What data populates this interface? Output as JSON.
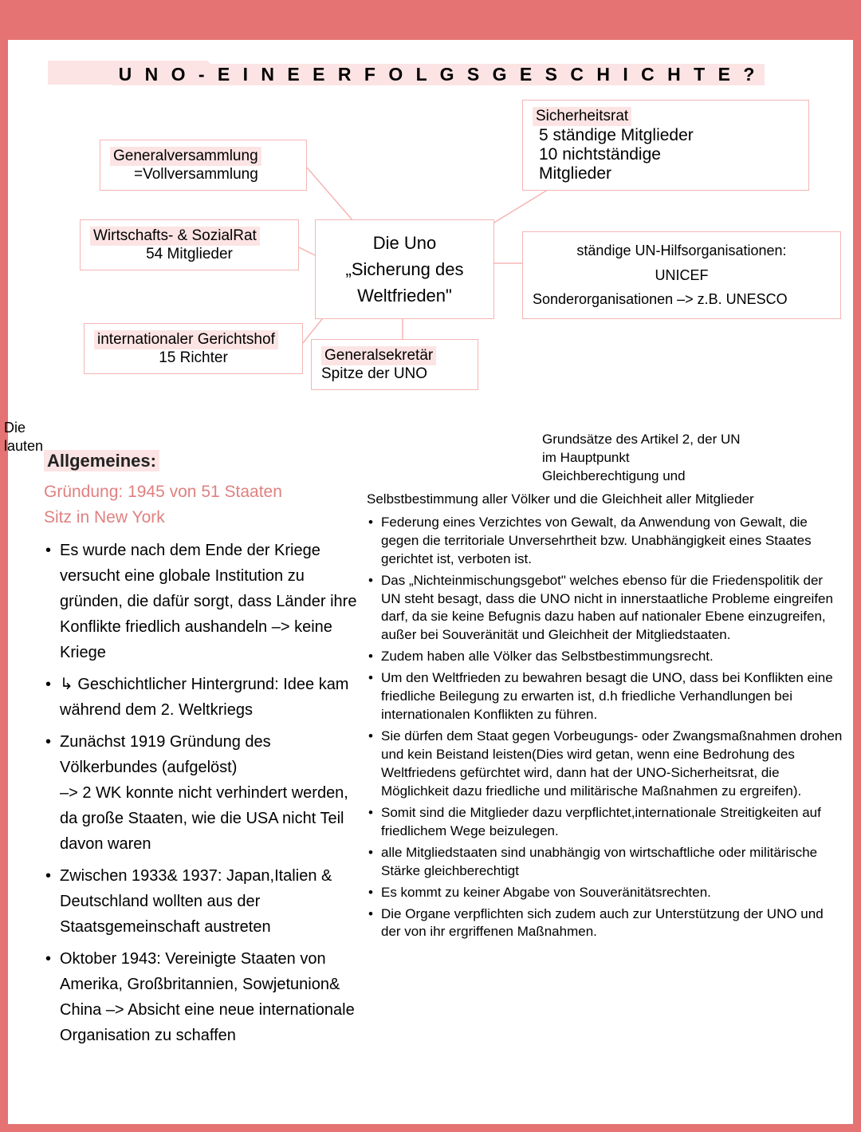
{
  "title": "U N O - E I N E  E R F O L G S  G E S C H I C H T E ?",
  "colors": {
    "frame": "#e57373",
    "box_border": "#f5b5b5",
    "highlight_bg": "#fce4e4",
    "accent_text": "#e08080",
    "connector": "#f5b5b5"
  },
  "diagram": {
    "center": {
      "line1": "Die Uno",
      "line2": "„Sicherung des",
      "line3": "Weltfrieden\""
    },
    "box1": {
      "label": "Generalversammlung",
      "sub": "=Vollversammlung"
    },
    "box2": {
      "label": "Wirtschafts- & SozialRat",
      "sub": "54 Mitglieder"
    },
    "box3": {
      "label": "internationaler Gerichtshof",
      "sub": "15 Richter"
    },
    "box4": {
      "label": "Generalsekretär",
      "sub": "Spitze der UNO"
    },
    "box5": {
      "label": "Sicherheitsrat",
      "row1": "5 ständige Mitglieder",
      "row2": "10 nichtständige",
      "row3": "Mitglieder"
    },
    "box6": {
      "row1": "ständige UN-Hilfsorganisationen:",
      "row2": "UNICEF",
      "row3": "Sonderorganisationen –> z.B. UNESCO"
    }
  },
  "side_label": {
    "line1": "Die",
    "line2": "lauten"
  },
  "allgemeines": {
    "heading": "Allgemeines:",
    "sub1": "Gründung: 1945 von 51 Staaten",
    "sub2": "Sitz in New York",
    "items": [
      "Es wurde nach dem Ende der Kriege versucht eine globale Institution zu gründen, die dafür sorgt, dass Länder ihre Konflikte friedlich aushandeln –> keine Kriege",
      "↳ Geschichtlicher Hintergrund: Idee kam während dem 2. Weltkriegs",
      "Zunächst 1919 Gründung des Völkerbundes  (aufgelöst)\n–> 2 WK konnte nicht verhindert werden, da große Staaten, wie die USA nicht Teil davon waren",
      "Zwischen 1933& 1937: Japan,Italien & Deutschland wollten aus der Staatsgemeinschaft austreten",
      "Oktober 1943: Vereinigte Staaten von Amerika, Großbritannien, Sowjetunion& China –> Absicht eine neue internationale Organisation zu schaffen"
    ]
  },
  "artikel2": {
    "intro_lines": [
      "Grundsätze des Artikel 2, der UN",
      "im Hauptpunkt",
      "Gleichberechtigung und"
    ],
    "intro2": "Selbstbestimmung aller Völker und die Gleichheit aller Mitglieder",
    "items": [
      "Federung eines Verzichtes von Gewalt, da Anwendung von Gewalt, die gegen die territoriale Unversehrtheit bzw. Unabhängigkeit eines Staates gerichtet ist, verboten ist.",
      "Das „Nichteinmischungsgebot\" welches ebenso für die Friedenspolitik der UN steht besagt, dass die UNO nicht in innerstaatliche Probleme eingreifen darf, da sie keine Befugnis dazu haben auf nationaler Ebene einzugreifen, außer bei  Souveränität und Gleichheit der Mitgliedstaaten.",
      "Zudem haben alle Völker das Selbstbestimmungsrecht.",
      "Um den Weltfrieden zu bewahren besagt die UNO, dass bei Konflikten eine friedliche Beilegung zu erwarten ist, d.h friedliche Verhandlungen bei internationalen Konflikten zu führen.",
      "Sie dürfen dem Staat gegen Vorbeugungs- oder Zwangsmaßnahmen drohen und kein Beistand leisten(Dies wird getan, wenn eine Bedrohung des Weltfriedens gefürchtet wird, dann hat der UNO-Sicherheitsrat, die Möglichkeit dazu friedliche und militärische Maßnahmen zu ergreifen).",
      "Somit sind die Mitglieder dazu verpflichtet,internationale Streitigkeiten auf friedlichem Wege beizulegen.",
      " alle Mitgliedstaaten sind unabhängig von wirtschaftliche oder militärische Stärke gleichberechtigt",
      "Es kommt zu keiner Abgabe von Souveränitätsrechten.",
      "Die Organe verpflichten sich zudem auch zur Unterstützung der  UNO und der von ihr ergriffenen  Maßnahmen."
    ]
  }
}
